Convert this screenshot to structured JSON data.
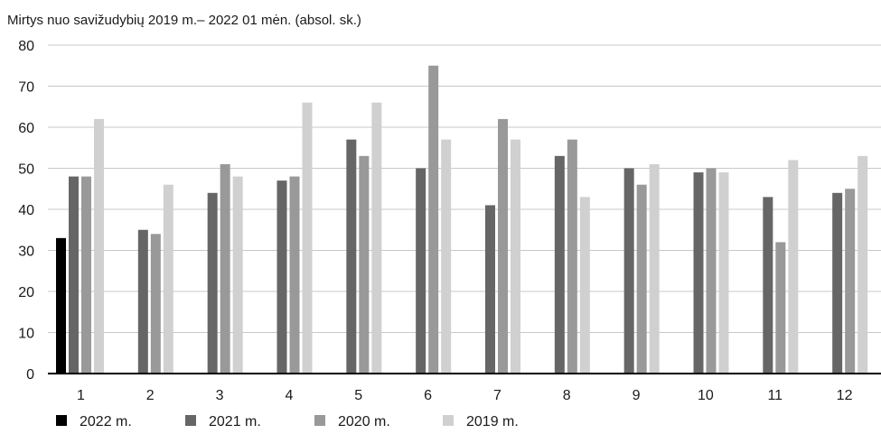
{
  "chart_data": {
    "type": "bar",
    "title": "Mirtys nuo savižudybių 2019 m.– 2022 01 mėn. (absol. sk.)",
    "xlabel": "",
    "ylabel": "",
    "ylim": [
      0,
      80
    ],
    "yticks": [
      "0",
      "10",
      "20",
      "30",
      "40",
      "50",
      "60",
      "70",
      "80"
    ],
    "grid": true,
    "legend_position": "bottom-left",
    "categories": [
      "1",
      "2",
      "3",
      "4",
      "5",
      "6",
      "7",
      "8",
      "9",
      "10",
      "11",
      "12"
    ],
    "series": [
      {
        "name": "2022 m.",
        "color": "#000000",
        "values": [
          33,
          null,
          null,
          null,
          null,
          null,
          null,
          null,
          null,
          null,
          null,
          null
        ]
      },
      {
        "name": "2021 m.",
        "color": "#666666",
        "values": [
          48,
          35,
          44,
          47,
          57,
          50,
          41,
          53,
          50,
          49,
          43,
          44
        ]
      },
      {
        "name": "2020 m.",
        "color": "#999999",
        "values": [
          48,
          34,
          51,
          48,
          53,
          75,
          62,
          57,
          46,
          50,
          32,
          45
        ]
      },
      {
        "name": "2019 m.",
        "color": "#d0d0d0",
        "values": [
          62,
          46,
          48,
          66,
          66,
          57,
          57,
          43,
          51,
          49,
          52,
          53
        ]
      }
    ]
  }
}
